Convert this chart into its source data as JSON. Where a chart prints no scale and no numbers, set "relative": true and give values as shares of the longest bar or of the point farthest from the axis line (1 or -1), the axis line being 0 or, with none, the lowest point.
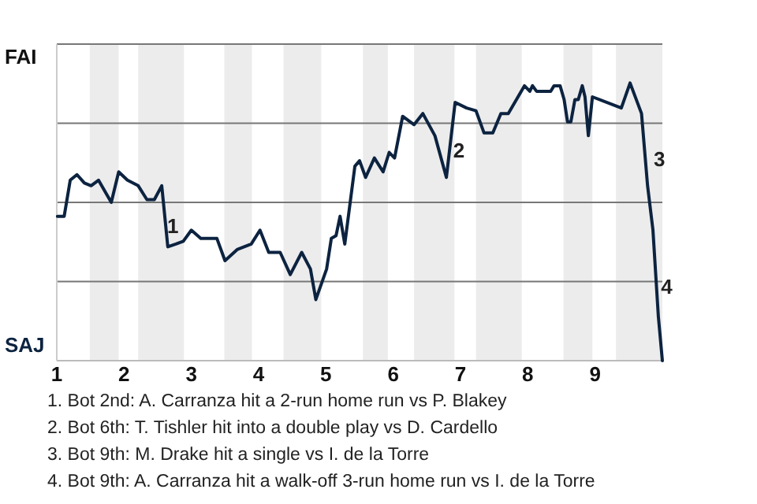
{
  "chart_data": {
    "type": "line",
    "relative": true,
    "x": [
      1.01,
      1.11,
      1.2,
      1.3,
      1.41,
      1.51,
      1.62,
      1.81,
      1.92,
      2.05,
      2.21,
      2.34,
      2.45,
      2.56,
      2.65,
      2.77,
      2.88,
      3.0,
      3.14,
      3.38,
      3.5,
      3.68,
      3.89,
      4.02,
      4.15,
      4.32,
      4.47,
      4.64,
      4.77,
      4.85,
      5.01,
      5.08,
      5.15,
      5.21,
      5.28,
      5.43,
      5.5,
      5.59,
      5.72,
      5.85,
      5.94,
      6.02,
      6.14,
      6.31,
      6.44,
      6.62,
      6.79,
      6.92,
      7.09,
      7.23,
      7.35,
      7.48,
      7.6,
      7.71,
      7.95,
      8.03,
      8.07,
      8.13,
      8.34,
      8.39,
      8.48,
      8.54,
      8.59,
      8.64,
      8.7,
      8.75,
      8.81,
      8.85,
      8.9,
      8.96,
      9.39,
      9.52,
      9.69,
      9.78,
      9.86,
      9.94,
      10
    ],
    "series": [
      {
        "color": "#0c2340",
        "values": [
          0.52,
          0.52,
          0.65,
          0.67,
          0.64,
          0.63,
          0.65,
          0.57,
          0.68,
          0.65,
          0.63,
          0.58,
          0.58,
          0.63,
          0.41,
          0.42,
          0.43,
          0.47,
          0.44,
          0.44,
          0.36,
          0.4,
          0.42,
          0.47,
          0.39,
          0.39,
          0.31,
          0.39,
          0.33,
          0.22,
          0.33,
          0.44,
          0.45,
          0.52,
          0.42,
          0.7,
          0.72,
          0.66,
          0.73,
          0.68,
          0.75,
          0.73,
          0.88,
          0.85,
          0.89,
          0.81,
          0.66,
          0.93,
          0.91,
          0.9,
          0.82,
          0.82,
          0.89,
          0.89,
          0.99,
          0.97,
          0.99,
          0.97,
          0.97,
          0.99,
          0.99,
          0.94,
          0.86,
          0.86,
          0.94,
          0.94,
          0.99,
          0.95,
          0.81,
          0.95,
          0.91,
          1,
          0.89,
          0.63,
          0.47,
          0.16,
          0
        ]
      }
    ],
    "xlim": [
      1,
      10
    ],
    "xticks": [
      1,
      2,
      3,
      4,
      5,
      6,
      7,
      8,
      9
    ],
    "grid": "y",
    "bands": [
      {
        "axis": "x",
        "from": 1.49,
        "to": 1.92,
        "color": "#ececec"
      },
      {
        "axis": "x",
        "from": 2.21,
        "to": 2.89,
        "color": "#ececec"
      },
      {
        "axis": "x",
        "from": 3.49,
        "to": 3.9,
        "color": "#ececec"
      },
      {
        "axis": "x",
        "from": 4.37,
        "to": 4.93,
        "color": "#ececec"
      },
      {
        "axis": "x",
        "from": 5.55,
        "to": 5.92,
        "color": "#ececec"
      },
      {
        "axis": "x",
        "from": 6.31,
        "to": 6.91,
        "color": "#ececec"
      },
      {
        "axis": "x",
        "from": 7.23,
        "to": 7.91,
        "color": "#ececec"
      },
      {
        "axis": "x",
        "from": 8.53,
        "to": 8.96,
        "color": "#ececec"
      },
      {
        "axis": "x",
        "from": 9.31,
        "to": 10,
        "color": "#ececec"
      }
    ],
    "annotations": [
      "FAI",
      "SAJ",
      {
        "text": "1",
        "x": 2.57,
        "y": 0.48
      },
      {
        "text": "2",
        "x": 6.82,
        "y": 0.75
      },
      {
        "text": "3",
        "x": 9.8,
        "y": 0.72
      },
      {
        "text": "4",
        "x": 9.91,
        "y": 0.26
      },
      "1. Bot 2nd: A. Carranza hit a 2-run home run vs P. Blakey",
      "2. Bot 6th: T. Tishler hit into a double play vs D. Cardello",
      "3. Bot 9th: M. Drake hit a single vs I. de la Torre",
      "4. Bot 9th: A. Carranza hit a walk-off 3-run home run vs I. de la Torre"
    ]
  }
}
